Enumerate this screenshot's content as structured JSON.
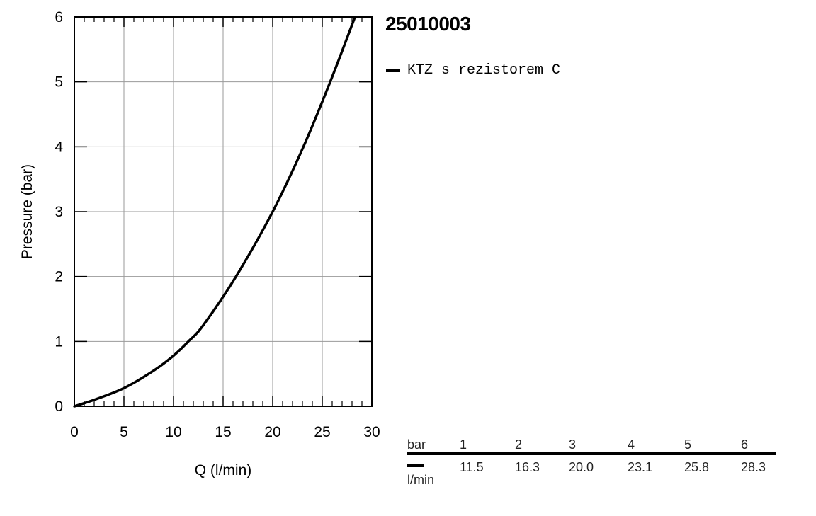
{
  "chart_data": {
    "type": "line",
    "xlabel": "Q (l/min)",
    "ylabel": "Pressure (bar)",
    "xlim": [
      0,
      30
    ],
    "ylim": [
      0,
      6
    ],
    "x_ticks": [
      "0",
      "5",
      "10",
      "15",
      "20",
      "25",
      "30"
    ],
    "y_ticks": [
      "0",
      "1",
      "2",
      "3",
      "4",
      "5",
      "6"
    ],
    "grid": true,
    "series": [
      {
        "name": "KTZ s rezistorem C",
        "color": "#000000",
        "x": [
          0,
          2,
          5,
          8,
          10,
          11.5,
          13,
          16.3,
          20.0,
          23.1,
          25.8,
          28.3
        ],
        "y": [
          0,
          0.1,
          0.28,
          0.55,
          0.78,
          1,
          1.25,
          2,
          3,
          4,
          5,
          6
        ]
      }
    ]
  },
  "title": "25010003",
  "legend": {
    "label": "KTZ s rezistorem C",
    "placement": "top-right, outside plot"
  },
  "table": {
    "header_unit": "bar",
    "row_unit": "l/min",
    "pressures": [
      "1",
      "2",
      "3",
      "4",
      "5",
      "6"
    ],
    "flows": [
      "11.5",
      "16.3",
      "20.0",
      "23.1",
      "25.8",
      "28.3"
    ]
  }
}
